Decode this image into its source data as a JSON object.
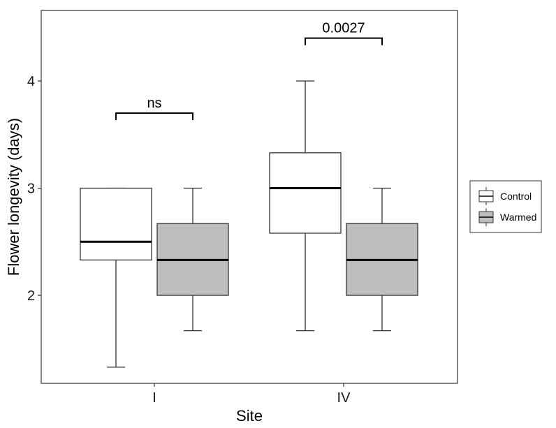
{
  "chart_data": {
    "type": "boxplot",
    "xlabel": "Site",
    "ylabel": "Flower longevity (days)",
    "categories": [
      "I",
      "IV"
    ],
    "ylim": [
      1.2,
      4.65
    ],
    "yticks": [
      2,
      3,
      4
    ],
    "grid": false,
    "legend_position": "right",
    "series": [
      {
        "name": "Control",
        "color": "#ffffff",
        "boxes": [
          {
            "category": "I",
            "whisker_low": 1.33,
            "q1": 2.33,
            "median": 2.5,
            "q3": 3.0,
            "whisker_high": 3.0
          },
          {
            "category": "IV",
            "whisker_low": 1.67,
            "q1": 2.58,
            "median": 3.0,
            "q3": 3.33,
            "whisker_high": 4.0
          }
        ]
      },
      {
        "name": "Warmed",
        "color": "#bebebe",
        "boxes": [
          {
            "category": "I",
            "whisker_low": 1.67,
            "q1": 2.0,
            "median": 2.33,
            "q3": 2.67,
            "whisker_high": 3.0
          },
          {
            "category": "IV",
            "whisker_low": 1.67,
            "q1": 2.0,
            "median": 2.33,
            "q3": 2.67,
            "whisker_high": 3.0
          }
        ]
      }
    ],
    "annotations": [
      {
        "category": "I",
        "label": "ns",
        "y": 3.7
      },
      {
        "category": "IV",
        "label": "0.0027",
        "y": 4.4
      }
    ]
  }
}
